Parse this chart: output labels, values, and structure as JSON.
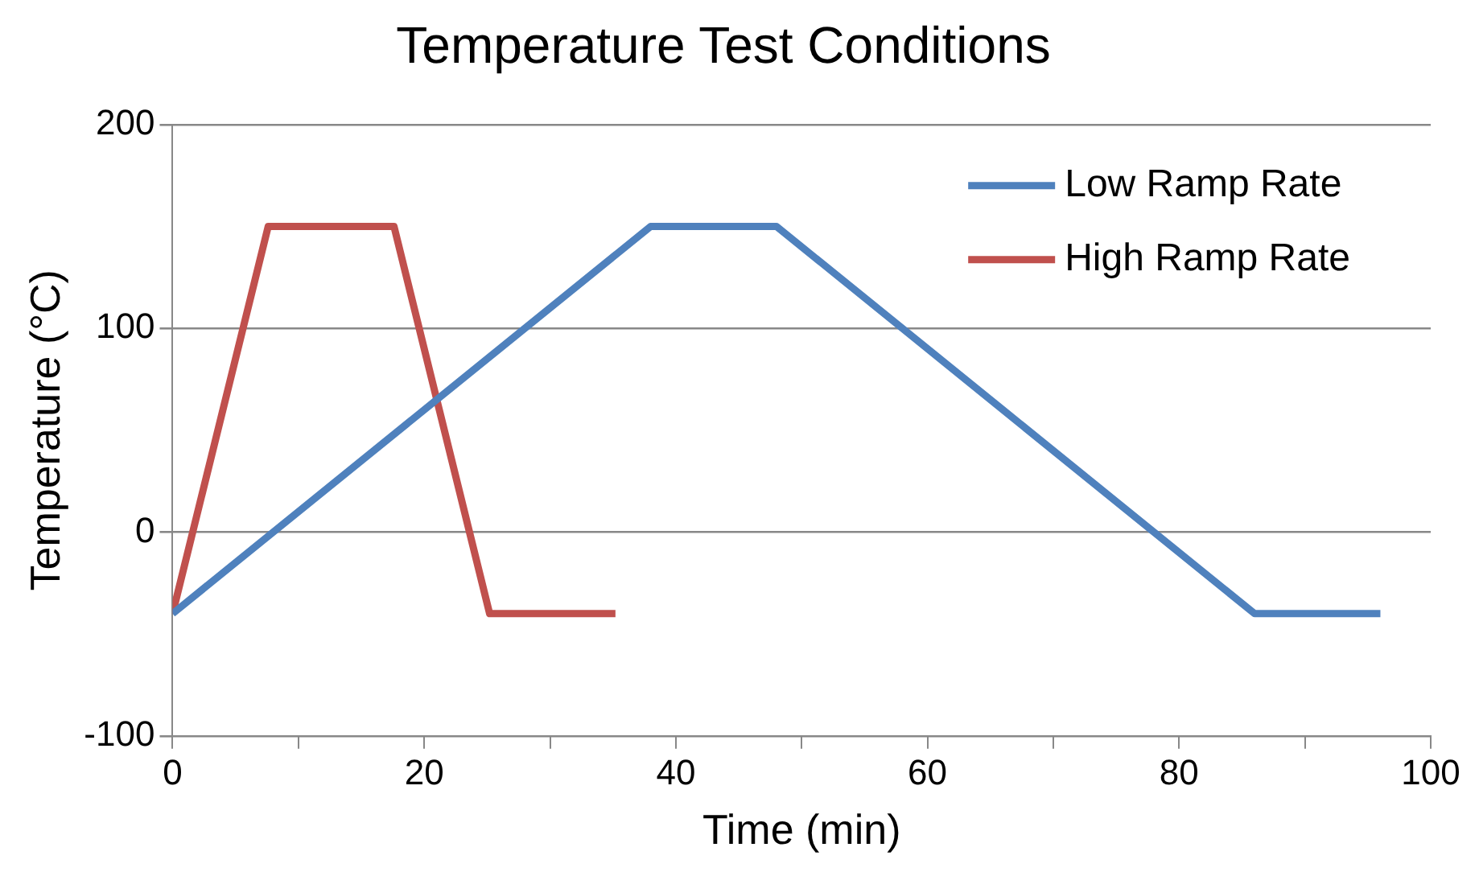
{
  "chart_data": {
    "type": "line",
    "title": "Temperature Test Conditions",
    "xlabel": "Time (min)",
    "ylabel": "Temperature (°C)",
    "xlim": [
      0,
      100
    ],
    "xticks": [
      0,
      {
        "value": 10,
        "label": null
      },
      20,
      {
        "value": 30,
        "label": null
      },
      40,
      {
        "value": 50,
        "label": null
      },
      60,
      {
        "value": 70,
        "label": null
      },
      80,
      {
        "value": 90,
        "label": null
      },
      100
    ],
    "ylim": [
      -100,
      200
    ],
    "yticks": [
      -100,
      0,
      100,
      200
    ],
    "grid": "y",
    "legend": "top right",
    "marker": "none",
    "line_style": "solid",
    "series": [
      {
        "name": "Low Ramp Rate",
        "color": "#4f81bd",
        "x": [
          0,
          38,
          48,
          86,
          96
        ],
        "values": [
          -40,
          150,
          150,
          -40,
          -40
        ]
      },
      {
        "name": "High Ramp Rate",
        "color": "#c0504d",
        "x": [
          0,
          7.6,
          17.6,
          25.2,
          35.2
        ],
        "values": [
          -40,
          150,
          150,
          -40,
          -40
        ]
      }
    ]
  }
}
